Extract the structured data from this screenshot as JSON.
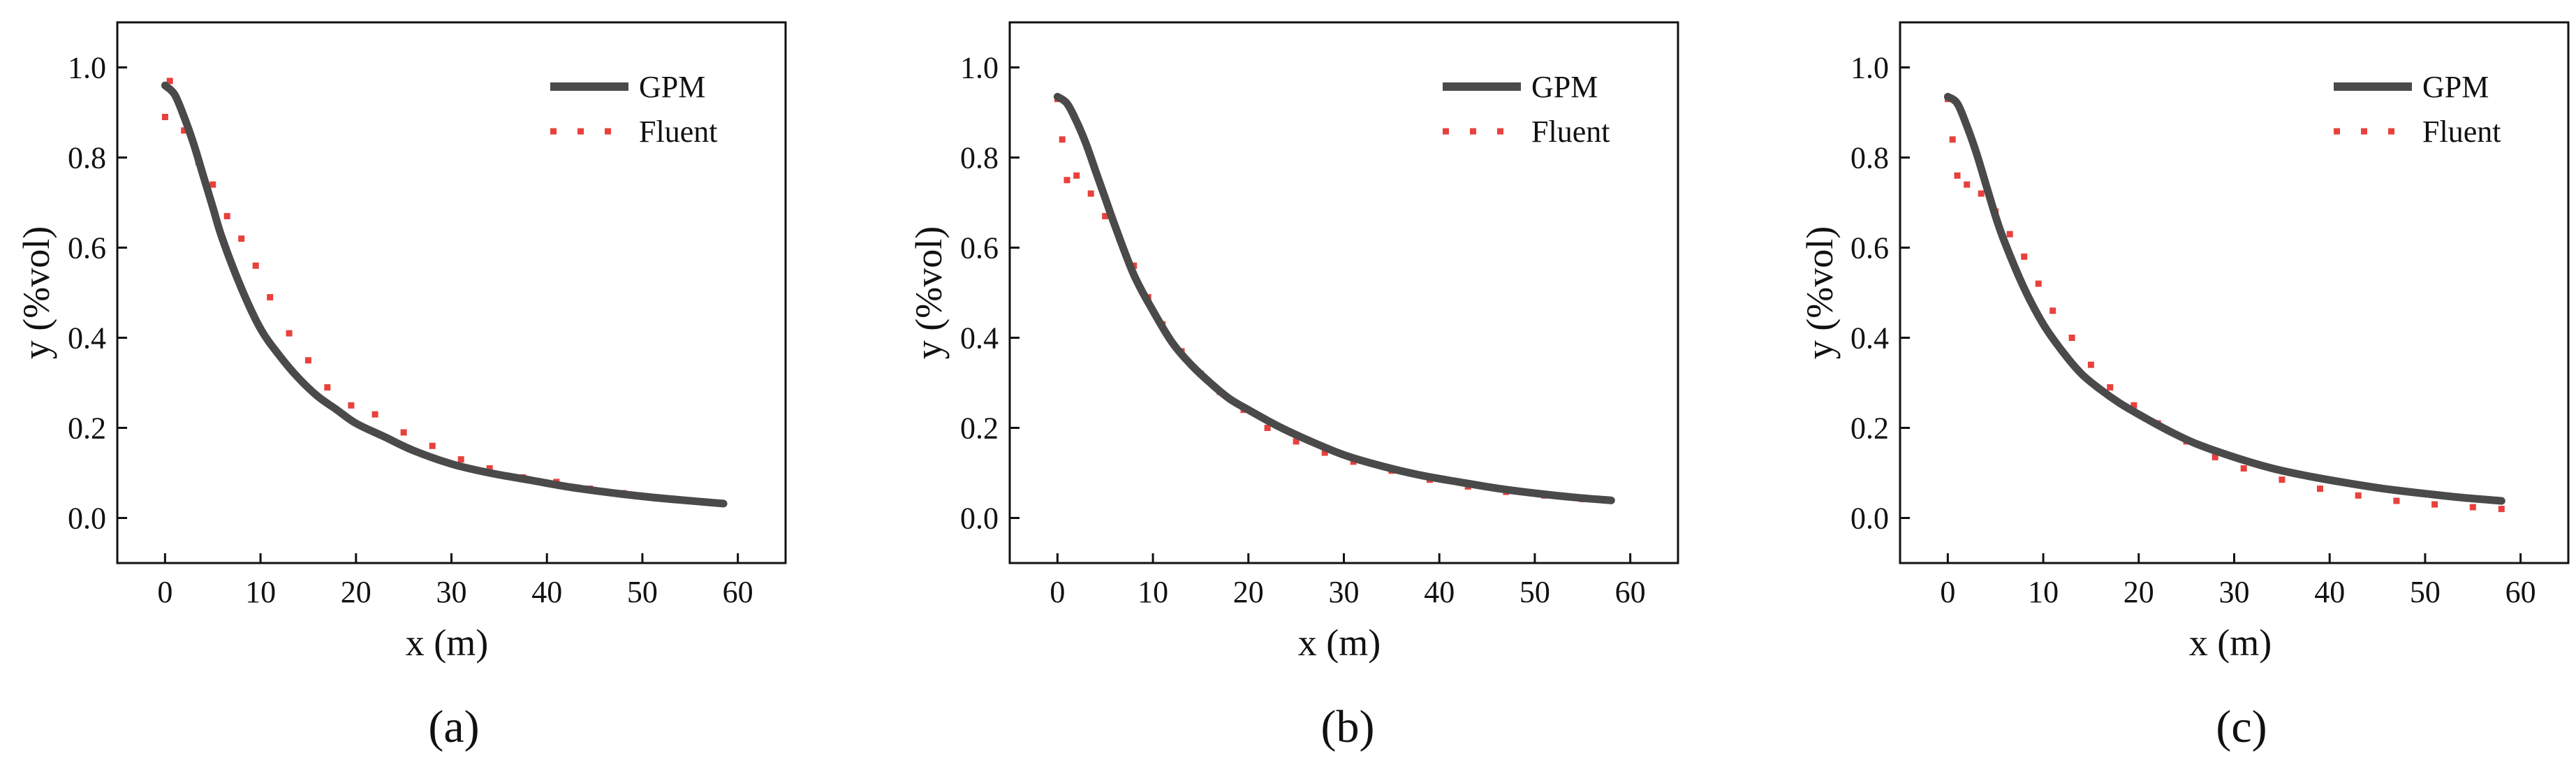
{
  "colors": {
    "gpm": "#4a4a4a",
    "fluent": "#e8413c",
    "axis": "#111111",
    "background": "#ffffff"
  },
  "chart_data": [
    {
      "type": "line",
      "panel_label": "(a)",
      "xlabel": "x (m)",
      "ylabel": "y (%vol)",
      "xlim": [
        -5,
        65
      ],
      "ylim": [
        -0.1,
        1.1
      ],
      "xticks": [
        0,
        10,
        20,
        30,
        40,
        50,
        60
      ],
      "yticks": [
        0.0,
        0.2,
        0.4,
        0.6,
        0.8,
        1.0
      ],
      "xtick_labels": [
        "0",
        "10",
        "20",
        "30",
        "40",
        "50",
        "60"
      ],
      "ytick_labels": [
        "0.0",
        "0.2",
        "0.4",
        "0.6",
        "0.8",
        "1.0"
      ],
      "legend": {
        "placement": "top-right",
        "entries": [
          "GPM",
          "Fluent"
        ]
      },
      "series": [
        {
          "name": "GPM",
          "style": "solid",
          "x": [
            0,
            1,
            2,
            3,
            4,
            5,
            6,
            8,
            10,
            12,
            14,
            16,
            18,
            20,
            23,
            26,
            30,
            34,
            38,
            42,
            46,
            50,
            54,
            58.5
          ],
          "y": [
            0.96,
            0.94,
            0.89,
            0.83,
            0.76,
            0.69,
            0.62,
            0.51,
            0.42,
            0.36,
            0.31,
            0.27,
            0.24,
            0.21,
            0.18,
            0.15,
            0.12,
            0.1,
            0.085,
            0.07,
            0.058,
            0.048,
            0.04,
            0.032
          ]
        },
        {
          "name": "Fluent",
          "style": "dotted",
          "x": [
            0,
            0.5,
            2,
            3.5,
            5,
            6.5,
            8,
            9.5,
            11,
            13,
            15,
            17,
            19.5,
            22,
            25,
            28,
            31,
            34,
            37.5,
            41,
            44.5,
            48,
            51.5,
            55
          ],
          "y": [
            0.89,
            0.97,
            0.86,
            0.79,
            0.74,
            0.67,
            0.62,
            0.56,
            0.49,
            0.41,
            0.35,
            0.29,
            0.25,
            0.23,
            0.19,
            0.16,
            0.13,
            0.11,
            0.09,
            0.08,
            0.065,
            0.055,
            0.046,
            0.038
          ]
        }
      ]
    },
    {
      "type": "line",
      "panel_label": "(b)",
      "xlabel": "x (m)",
      "ylabel": "y (%vol)",
      "xlim": [
        -5,
        65
      ],
      "ylim": [
        -0.1,
        1.1
      ],
      "xticks": [
        0,
        10,
        20,
        30,
        40,
        50,
        60
      ],
      "yticks": [
        0.0,
        0.2,
        0.4,
        0.6,
        0.8,
        1.0
      ],
      "xtick_labels": [
        "0",
        "10",
        "20",
        "30",
        "40",
        "50",
        "60"
      ],
      "ytick_labels": [
        "0.0",
        "0.2",
        "0.4",
        "0.6",
        "0.8",
        "1.0"
      ],
      "legend": {
        "placement": "top-right",
        "entries": [
          "GPM",
          "Fluent"
        ]
      },
      "series": [
        {
          "name": "GPM",
          "style": "solid",
          "x": [
            0,
            1,
            2,
            3,
            4,
            5,
            6,
            8,
            10,
            12,
            14,
            16,
            18,
            20,
            23,
            26,
            30,
            34,
            38,
            42,
            46,
            50,
            54,
            58
          ],
          "y": [
            0.935,
            0.92,
            0.88,
            0.83,
            0.77,
            0.71,
            0.65,
            0.54,
            0.46,
            0.39,
            0.34,
            0.3,
            0.265,
            0.24,
            0.205,
            0.175,
            0.14,
            0.115,
            0.095,
            0.08,
            0.066,
            0.055,
            0.046,
            0.039
          ]
        },
        {
          "name": "Fluent",
          "style": "dotted",
          "x": [
            0,
            0.5,
            1,
            2,
            3.5,
            5,
            6.5,
            8,
            9.5,
            11,
            13,
            15,
            17,
            19.5,
            22,
            25,
            28,
            31,
            35,
            39,
            43,
            47,
            51,
            55
          ],
          "y": [
            0.93,
            0.84,
            0.75,
            0.76,
            0.72,
            0.67,
            0.62,
            0.56,
            0.49,
            0.43,
            0.37,
            0.32,
            0.28,
            0.24,
            0.2,
            0.17,
            0.145,
            0.125,
            0.105,
            0.085,
            0.07,
            0.058,
            0.05,
            0.042
          ]
        }
      ]
    },
    {
      "type": "line",
      "panel_label": "(c)",
      "xlabel": "x (m)",
      "ylabel": "y (%vol)",
      "xlim": [
        -5,
        65
      ],
      "ylim": [
        -0.1,
        1.1
      ],
      "xticks": [
        0,
        10,
        20,
        30,
        40,
        50,
        60
      ],
      "yticks": [
        0.0,
        0.2,
        0.4,
        0.6,
        0.8,
        1.0
      ],
      "xtick_labels": [
        "0",
        "10",
        "20",
        "30",
        "40",
        "50",
        "60"
      ],
      "ytick_labels": [
        "0.0",
        "0.2",
        "0.4",
        "0.6",
        "0.8",
        "1.0"
      ],
      "legend": {
        "placement": "top-right",
        "entries": [
          "GPM",
          "Fluent"
        ]
      },
      "series": [
        {
          "name": "GPM",
          "style": "solid",
          "x": [
            0,
            1,
            2,
            3,
            4,
            5,
            6,
            8,
            10,
            12,
            14,
            16,
            18,
            20,
            23,
            26,
            30,
            34,
            38,
            42,
            46,
            50,
            54,
            58
          ],
          "y": [
            0.935,
            0.92,
            0.87,
            0.81,
            0.74,
            0.67,
            0.61,
            0.51,
            0.43,
            0.37,
            0.32,
            0.285,
            0.255,
            0.23,
            0.195,
            0.165,
            0.135,
            0.11,
            0.092,
            0.077,
            0.064,
            0.054,
            0.045,
            0.038
          ]
        },
        {
          "name": "Fluent",
          "style": "dotted",
          "x": [
            0,
            0.5,
            1,
            2,
            3.5,
            5,
            6.5,
            8,
            9.5,
            11,
            13,
            15,
            17,
            19.5,
            22,
            25,
            28,
            31,
            35,
            39,
            43,
            47,
            51,
            55,
            58
          ],
          "y": [
            0.93,
            0.84,
            0.76,
            0.74,
            0.72,
            0.68,
            0.63,
            0.58,
            0.52,
            0.46,
            0.4,
            0.34,
            0.29,
            0.25,
            0.21,
            0.17,
            0.135,
            0.11,
            0.085,
            0.065,
            0.05,
            0.038,
            0.03,
            0.024,
            0.02
          ]
        }
      ]
    }
  ]
}
